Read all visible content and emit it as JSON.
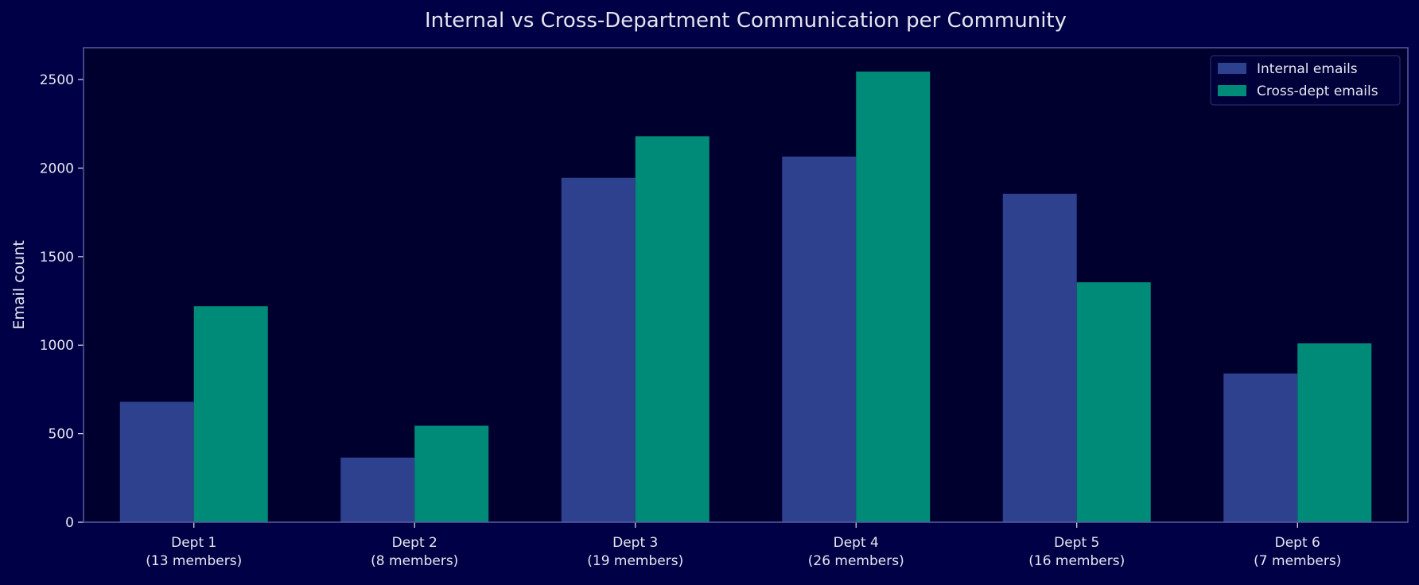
{
  "colors": {
    "figure_bg": "#000046",
    "plot_bg": "#00002f",
    "frame": "#5a5aa0",
    "text": "#e6e6f0",
    "internal": "#2e418e",
    "cross": "#008b79",
    "legend_bg": "#00003a",
    "legend_border": "#2a2a6a"
  },
  "chart_data": {
    "type": "bar",
    "title": "Internal vs Cross-Department Communication per Community",
    "xlabel": "",
    "ylabel": "Email count",
    "ylim": [
      0,
      2680
    ],
    "yticks": [
      0,
      500,
      1000,
      1500,
      2000,
      2500
    ],
    "grid": false,
    "legend_position": "top-right",
    "categories": [
      [
        "Dept 1",
        "(13 members)"
      ],
      [
        "Dept 2",
        "(8 members)"
      ],
      [
        "Dept 3",
        "(19 members)"
      ],
      [
        "Dept 4",
        "(26 members)"
      ],
      [
        "Dept 5",
        "(16 members)"
      ],
      [
        "Dept 6",
        "(7 members)"
      ]
    ],
    "series": [
      {
        "name": "Internal emails",
        "values": [
          680,
          365,
          1945,
          2065,
          1855,
          840
        ]
      },
      {
        "name": "Cross-dept emails",
        "values": [
          1220,
          545,
          2180,
          2545,
          1355,
          1010
        ]
      }
    ]
  }
}
